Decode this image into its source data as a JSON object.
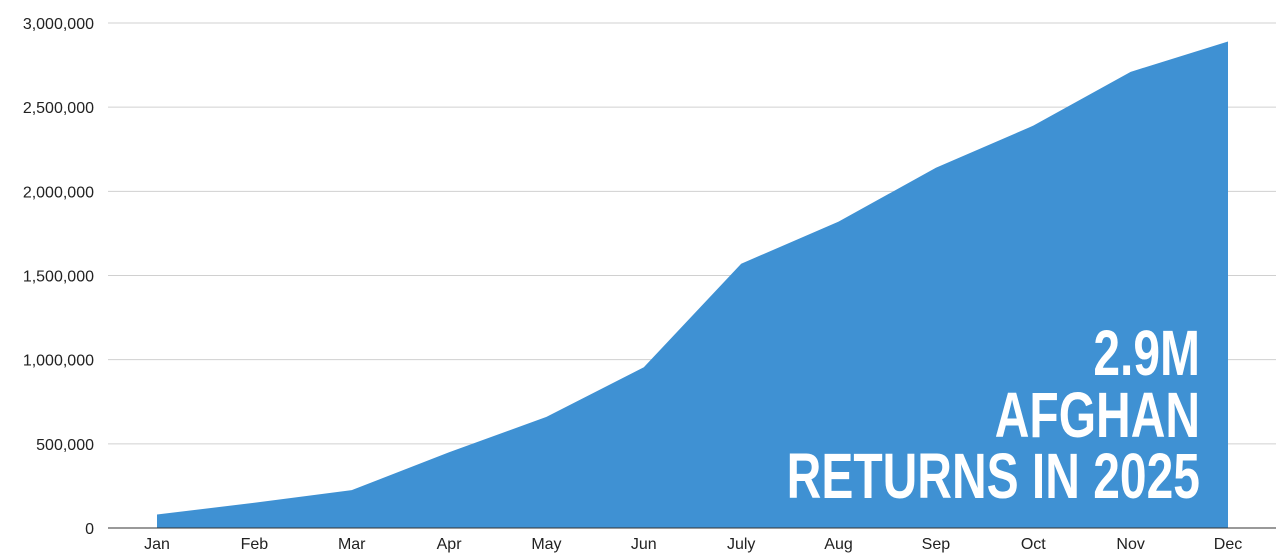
{
  "chart_data": {
    "type": "area",
    "categories": [
      "Jan",
      "Feb",
      "Mar",
      "Apr",
      "May",
      "Jun",
      "July",
      "Aug",
      "Sep",
      "Oct",
      "Nov",
      "Dec"
    ],
    "values": [
      80000,
      150000,
      225000,
      450000,
      660000,
      955000,
      1570000,
      1820000,
      2140000,
      2390000,
      2710000,
      2890000
    ],
    "color": "#3f91d3",
    "ylim": [
      0,
      3000000
    ],
    "yticks": [
      0,
      {
        "value": 500000,
        "label": "500,000"
      },
      {
        "value": 1000000,
        "label": "1,000,000"
      },
      {
        "value": 1500000,
        "label": "1,500,000"
      },
      {
        "value": 2000000,
        "label": "2,000,000"
      },
      {
        "value": 2500000,
        "label": "2,500,000"
      },
      {
        "value": 3000000,
        "label": "3,000,000"
      }
    ],
    "grid": true,
    "annotation": [
      "2.9M",
      "AFGHAN",
      "RETURNS IN 2025"
    ]
  }
}
